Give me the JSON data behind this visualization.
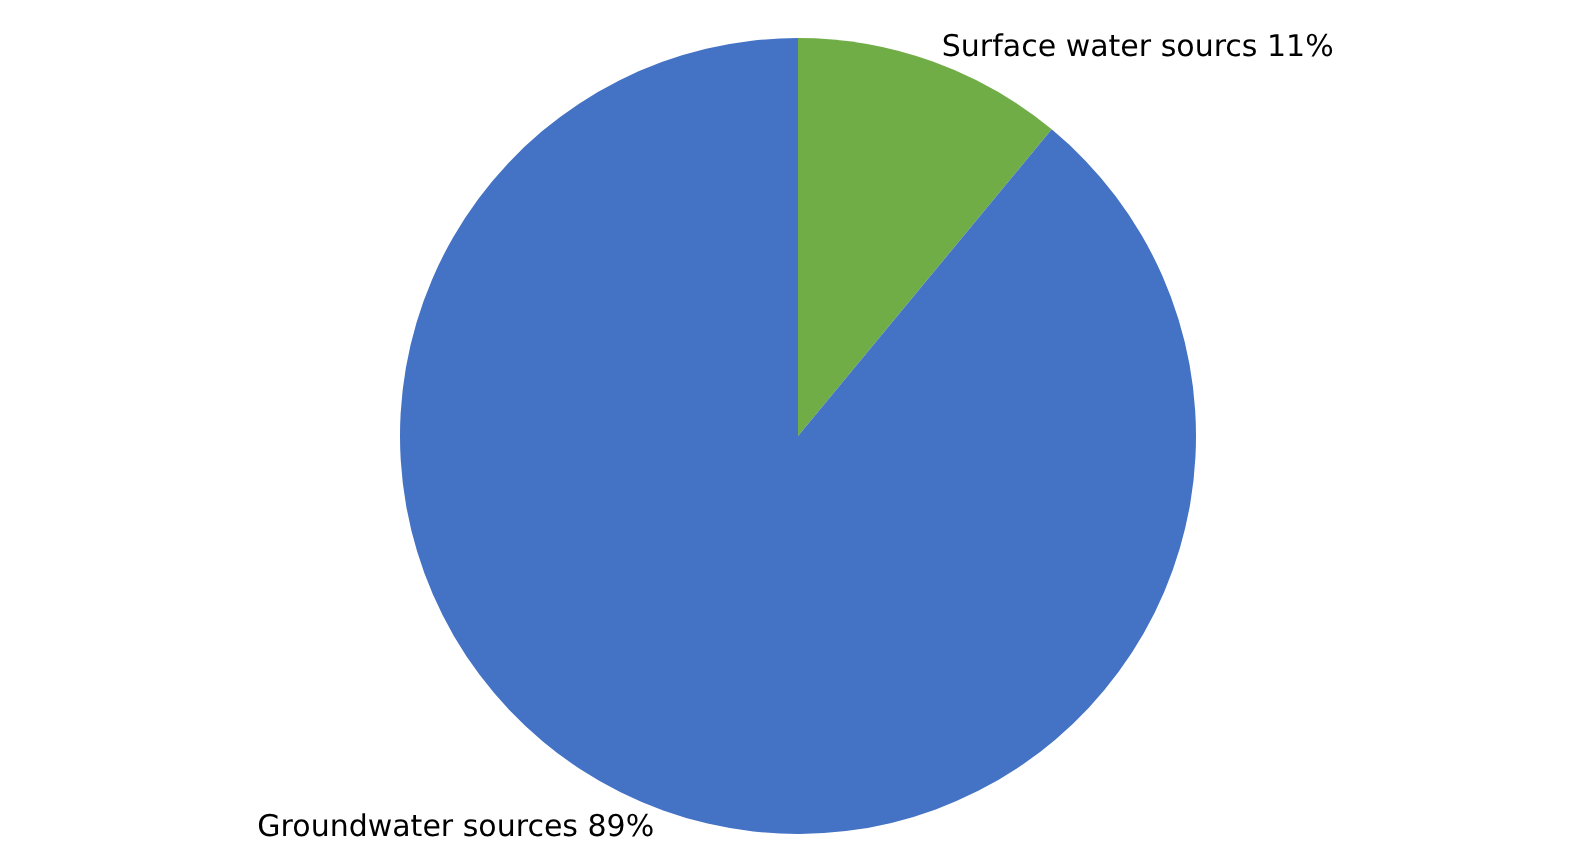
{
  "chart_data": {
    "type": "pie",
    "categories": [
      "Surface water sourcs",
      "Groundwater sources"
    ],
    "values": [
      11,
      89
    ],
    "value_labels": [
      "11%",
      "89%"
    ],
    "colors": [
      "#70ad47",
      "#4472c4"
    ],
    "legend": false
  }
}
